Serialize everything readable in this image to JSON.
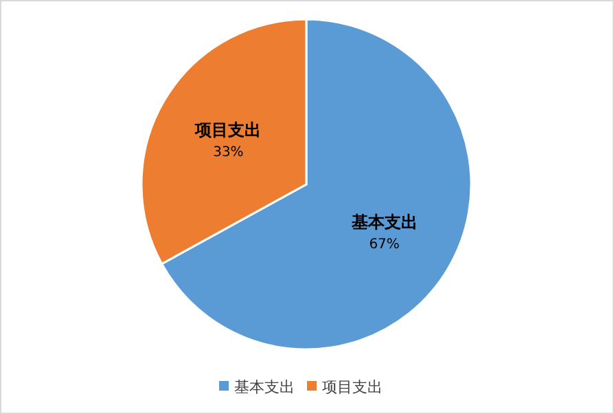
{
  "chart_data": {
    "type": "pie",
    "categories": [
      "基本支出",
      "项目支出"
    ],
    "values": [
      67,
      33
    ],
    "value_labels": [
      "67%",
      "33%"
    ],
    "colors": [
      "#5b9bd5",
      "#ed7d31"
    ],
    "legend": "bottom"
  }
}
